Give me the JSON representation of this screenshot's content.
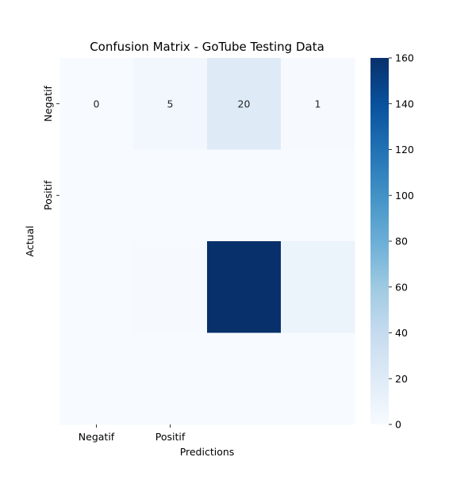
{
  "chart_data": {
    "type": "heatmap",
    "title": "Confusion Matrix - GoTube Testing Data",
    "xlabel": "Predictions",
    "ylabel": "Actual",
    "x_tick_labels": [
      "Negatif",
      "Positif",
      "",
      ""
    ],
    "y_tick_labels": [
      "Negatif",
      "Positif",
      "",
      ""
    ],
    "matrix": [
      [
        0,
        5,
        20,
        1
      ],
      [
        0,
        0,
        0,
        0
      ],
      [
        0,
        1,
        160,
        10
      ],
      [
        0,
        0,
        0,
        0
      ]
    ],
    "annotated_rows": [
      0
    ],
    "colorbar": {
      "colormap": "Blues",
      "range": [
        0,
        160
      ],
      "ticks": [
        0,
        20,
        40,
        60,
        80,
        100,
        120,
        140,
        160
      ]
    }
  }
}
